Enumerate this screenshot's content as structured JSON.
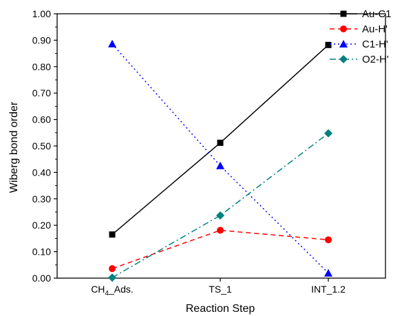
{
  "chart_data": {
    "type": "line",
    "xlabel": "Reaction Step",
    "ylabel": "Wiberg bond order",
    "ylim": [
      0,
      1.0
    ],
    "yticks": [
      "0.00",
      "0.10",
      "0.20",
      "0.30",
      "0.40",
      "0.50",
      "0.60",
      "0.70",
      "0.80",
      "0.90",
      "1.00"
    ],
    "categories": [
      {
        "main": "CH",
        "sub": "4",
        "rest": "_Ads."
      },
      {
        "main": "TS_1",
        "sub": "",
        "rest": ""
      },
      {
        "main": "INT_1.2",
        "sub": "",
        "rest": ""
      }
    ],
    "grid": false,
    "legend_position": "top-right",
    "series": [
      {
        "name": "Au-C1",
        "values": [
          0.165,
          0.512,
          0.882
        ],
        "color": "#000000",
        "dash": "solid",
        "marker": "square"
      },
      {
        "name": "Au-H'",
        "values": [
          0.036,
          0.181,
          0.145
        ],
        "color": "#ff0000",
        "dash": "dash",
        "marker": "circle"
      },
      {
        "name": "C1-H'",
        "values": [
          0.886,
          0.425,
          0.019
        ],
        "color": "#0000ff",
        "dash": "dot",
        "marker": "triangle"
      },
      {
        "name": "O2-H'",
        "values": [
          0.002,
          0.237,
          0.548
        ],
        "color": "#008080",
        "dash": "dashdot",
        "marker": "diamond"
      }
    ]
  }
}
